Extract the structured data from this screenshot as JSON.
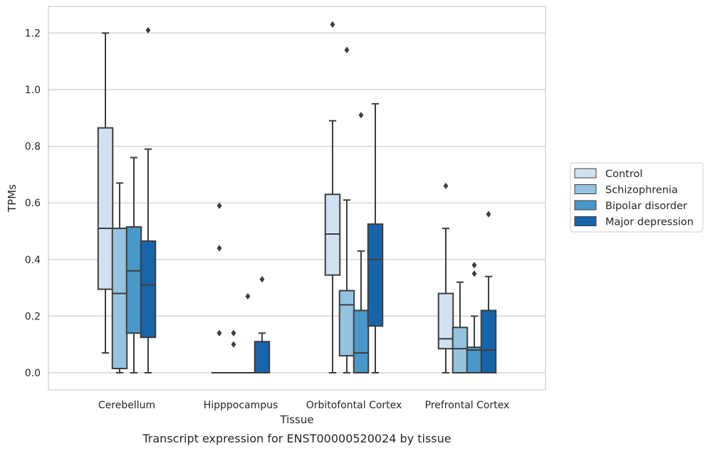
{
  "chart_data": {
    "type": "boxplot",
    "caption": "Transcript expression for ENST00000520024 by tissue",
    "xlabel": "Tissue",
    "ylabel": "TPMs",
    "ylim": [
      -0.06,
      1.29
    ],
    "yticks": [
      "0.0",
      "0.2",
      "0.4",
      "0.6",
      "0.8",
      "1.0",
      "1.2"
    ],
    "grid": true,
    "legend_position": "right",
    "categories": [
      "Cerebellum",
      "Hipppocampus",
      "Orbitofontal Cortex",
      "Prefrontal Cortex"
    ],
    "series": [
      {
        "name": "Control",
        "color": "#d0e1f2",
        "boxes": [
          {
            "whislo": 0.07,
            "q1": 0.295,
            "med": 0.51,
            "q3": 0.865,
            "whishi": 1.2,
            "fliers": []
          },
          {
            "whislo": 0.0,
            "q1": 0.0,
            "med": 0.0,
            "q3": 0.0,
            "whishi": 0.0,
            "fliers": [
              0.14,
              0.44,
              0.59
            ]
          },
          {
            "whislo": 0.0,
            "q1": 0.345,
            "med": 0.49,
            "q3": 0.63,
            "whishi": 0.89,
            "fliers": [
              1.23
            ]
          },
          {
            "whislo": 0.0,
            "q1": 0.085,
            "med": 0.12,
            "q3": 0.28,
            "whishi": 0.51,
            "fliers": [
              0.66
            ]
          }
        ]
      },
      {
        "name": "Schizophrenia",
        "color": "#94c4df",
        "boxes": [
          {
            "whislo": 0.0,
            "q1": 0.015,
            "med": 0.28,
            "q3": 0.51,
            "whishi": 0.67,
            "fliers": []
          },
          {
            "whislo": 0.0,
            "q1": 0.0,
            "med": 0.0,
            "q3": 0.0,
            "whishi": 0.0,
            "fliers": [
              0.1,
              0.14
            ]
          },
          {
            "whislo": 0.0,
            "q1": 0.06,
            "med": 0.24,
            "q3": 0.29,
            "whishi": 0.61,
            "fliers": [
              1.14
            ]
          },
          {
            "whislo": 0.0,
            "q1": 0.0,
            "med": 0.085,
            "q3": 0.16,
            "whishi": 0.32,
            "fliers": []
          }
        ]
      },
      {
        "name": "Bipolar disorder",
        "color": "#4a98c9",
        "boxes": [
          {
            "whislo": 0.0,
            "q1": 0.14,
            "med": 0.36,
            "q3": 0.515,
            "whishi": 0.76,
            "fliers": []
          },
          {
            "whislo": 0.0,
            "q1": 0.0,
            "med": 0.0,
            "q3": 0.0,
            "whishi": 0.0,
            "fliers": [
              0.27
            ]
          },
          {
            "whislo": 0.0,
            "q1": 0.0,
            "med": 0.07,
            "q3": 0.22,
            "whishi": 0.43,
            "fliers": [
              0.91
            ]
          },
          {
            "whislo": 0.0,
            "q1": 0.0,
            "med": 0.08,
            "q3": 0.09,
            "whishi": 0.2,
            "fliers": [
              0.35,
              0.38
            ]
          }
        ]
      },
      {
        "name": "Major depression",
        "color": "#1764ab",
        "boxes": [
          {
            "whislo": 0.0,
            "q1": 0.125,
            "med": 0.31,
            "q3": 0.465,
            "whishi": 0.79,
            "fliers": [
              1.21
            ]
          },
          {
            "whislo": 0.0,
            "q1": 0.0,
            "med": 0.0,
            "q3": 0.11,
            "whishi": 0.14,
            "fliers": [
              0.33
            ]
          },
          {
            "whislo": 0.0,
            "q1": 0.165,
            "med": 0.4,
            "q3": 0.525,
            "whishi": 0.95,
            "fliers": []
          },
          {
            "whislo": 0.0,
            "q1": 0.0,
            "med": 0.08,
            "q3": 0.22,
            "whishi": 0.34,
            "fliers": [
              0.56
            ]
          }
        ]
      }
    ]
  }
}
